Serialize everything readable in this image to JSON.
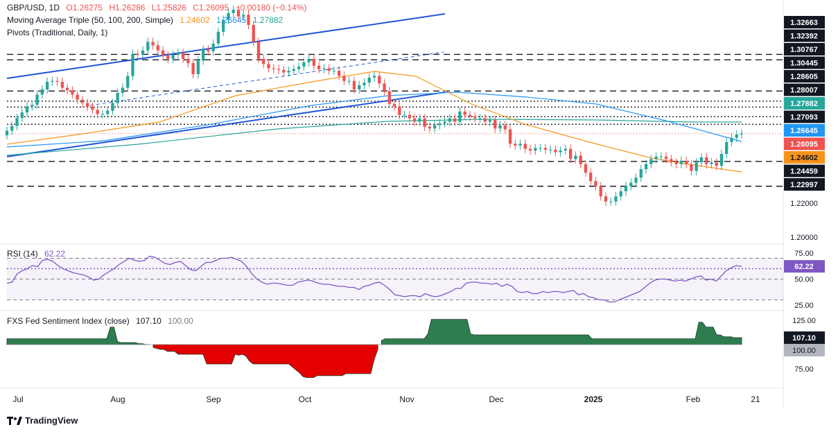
{
  "colors": {
    "up": "#26a69a",
    "down": "#ef5350",
    "ma50": "#f7931a",
    "ma100": "#2196f3",
    "ma200": "#26a69a",
    "trend": "#1e55d6",
    "rsi": "#7e57c2",
    "sentiment_pos": "#2e7d4f",
    "sentiment_neg": "#e40000",
    "pivot": "#131722"
  },
  "header": {
    "symbol": "GBP/USD, 1D",
    "open": "O1.26275",
    "high": "H1.26286",
    "low": "L1.25826",
    "close": "C1.26095",
    "change": "−0.00180 (−0.14%)",
    "ma_label": "Moving Average Triple (50, 100, 200, Simple)",
    "ma50": "1.24602",
    "ma100": "1.26645",
    "ma200": "1.27882",
    "pivots_label": "Pivots (Traditional, Daily, 1)"
  },
  "rsi_header": {
    "label": "RSI (14)",
    "value": "62.22"
  },
  "fed_header": {
    "label": "FXS Fed Sentiment Index (close)",
    "value": "107.10",
    "base": "100.00"
  },
  "watermark": "TradingView",
  "chart_data": [
    {
      "type": "candlestick",
      "title": "GBP/USD, 1D",
      "x_ticks": [
        "Jul",
        "Aug",
        "Sep",
        "Oct",
        "Nov",
        "Dec",
        "2025",
        "Feb",
        "21"
      ],
      "y_ticks": [
        1.2,
        1.22
      ],
      "ylim": [
        1.195,
        1.335
      ],
      "price_labels": [
        {
          "value": 1.32663,
          "text": "1.32663",
          "style": "dark"
        },
        {
          "value": 1.32392,
          "text": "1.32392",
          "style": "dark"
        },
        {
          "value": 1.30767,
          "text": "1.30767",
          "style": "dark"
        },
        {
          "value": 1.30445,
          "text": "1.30445",
          "style": "dark"
        },
        {
          "value": 1.28605,
          "text": "1.28605",
          "style": "dark"
        },
        {
          "value": 1.28007,
          "text": "1.28007",
          "style": "dark"
        },
        {
          "value": 1.27882,
          "text": "1.27882",
          "style": "ma200"
        },
        {
          "value": 1.27093,
          "text": "1.27093",
          "style": "dark"
        },
        {
          "value": 1.26645,
          "text": "1.26645",
          "style": "ma100"
        },
        {
          "value": 1.26095,
          "text": "1.26095",
          "style": "down"
        },
        {
          "value": 1.24602,
          "text": "1.24602",
          "style": "ma50"
        },
        {
          "value": 1.24459,
          "text": "1.24459",
          "style": "dark"
        },
        {
          "value": 1.22997,
          "text": "1.22997",
          "style": "dark"
        }
      ],
      "pivot_levels": [
        {
          "value": 1.30767,
          "dash": "long"
        },
        {
          "value": 1.30445,
          "dash": "long"
        },
        {
          "value": 1.28605,
          "dash": "long"
        },
        {
          "value": 1.28007,
          "dash": "dot"
        },
        {
          "value": 1.2766,
          "dash": "dot"
        },
        {
          "value": 1.27093,
          "dash": "dot"
        },
        {
          "value": 1.26645,
          "dash": "dot"
        },
        {
          "value": 1.24459,
          "dash": "long"
        },
        {
          "value": 1.22997,
          "dash": "long"
        }
      ],
      "close_series": [
        1.2627,
        1.2655,
        1.2702,
        1.2735,
        1.277,
        1.278,
        1.284,
        1.287,
        1.2915,
        1.292,
        1.2915,
        1.288,
        1.2865,
        1.284,
        1.281,
        1.279,
        1.2768,
        1.275,
        1.2725,
        1.2725,
        1.2745,
        1.279,
        1.285,
        1.288,
        1.295,
        1.308,
        1.3075,
        1.31,
        1.315,
        1.313,
        1.31,
        1.307,
        1.305,
        1.3075,
        1.3085,
        1.305,
        1.3025,
        1.296,
        1.304,
        1.3105,
        1.3095,
        1.314,
        1.321,
        1.328,
        1.332,
        1.334,
        1.33,
        1.331,
        1.325,
        1.315,
        1.305,
        1.302,
        1.2995,
        1.299,
        1.2985,
        1.297,
        1.298,
        1.299,
        1.3005,
        1.303,
        1.305,
        1.301,
        1.299,
        1.2995,
        1.298,
        1.298,
        1.295,
        1.292,
        1.292,
        1.287,
        1.2895,
        1.291,
        1.294,
        1.295,
        1.2905,
        1.286,
        1.2785,
        1.277,
        1.272,
        1.272,
        1.27,
        1.268,
        1.27,
        1.265,
        1.264,
        1.266,
        1.267,
        1.268,
        1.27,
        1.268,
        1.274,
        1.272,
        1.271,
        1.27,
        1.27,
        1.268,
        1.269,
        1.264,
        1.266,
        1.2635,
        1.255,
        1.254,
        1.255,
        1.252,
        1.251,
        1.2525,
        1.2525,
        1.2515,
        1.2515,
        1.25,
        1.251,
        1.252,
        1.246,
        1.248,
        1.243,
        1.238,
        1.233,
        1.23,
        1.224,
        1.221,
        1.221,
        1.224,
        1.227,
        1.23,
        1.232,
        1.235,
        1.24,
        1.243,
        1.246,
        1.2475,
        1.2475,
        1.246,
        1.244,
        1.243,
        1.245,
        1.243,
        1.239,
        1.244,
        1.247,
        1.243,
        1.244,
        1.242,
        1.249,
        1.256,
        1.2585,
        1.2605,
        1.261
      ],
      "sma": {
        "ma50": 1.24602,
        "ma100": 1.26645,
        "ma200": 1.27882
      }
    },
    {
      "type": "line",
      "title": "RSI (14)",
      "y_ticks": [
        75,
        50,
        25
      ],
      "ylim": [
        20,
        80
      ],
      "bands": [
        70,
        60,
        50,
        30
      ],
      "last_value": 62.22,
      "values": [
        46,
        47,
        55,
        58,
        60,
        63,
        62,
        68,
        69,
        67,
        63,
        60,
        58,
        56,
        55,
        54,
        52,
        49,
        50,
        54,
        57,
        60,
        64,
        67,
        70,
        68,
        67,
        68,
        72,
        71,
        68,
        65,
        64,
        66,
        67,
        63,
        59,
        58,
        62,
        66,
        66,
        68,
        70,
        70,
        71,
        69,
        67,
        62,
        55,
        50,
        47,
        45,
        46,
        46,
        45,
        44,
        44,
        47,
        48,
        49,
        48,
        46,
        45,
        45,
        44,
        43,
        43,
        42,
        42,
        40,
        43,
        44,
        46,
        47,
        44,
        40,
        35,
        34,
        33,
        34,
        34,
        33,
        36,
        34,
        33,
        34,
        36,
        38,
        41,
        41,
        46,
        47,
        47,
        46,
        46,
        45,
        46,
        43,
        45,
        43,
        38,
        37,
        38,
        36,
        36,
        38,
        37,
        38,
        38,
        37,
        38,
        39,
        35,
        36,
        33,
        32,
        30,
        30,
        28,
        28,
        30,
        32,
        34,
        36,
        38,
        42,
        46,
        49,
        50,
        50,
        49,
        48,
        49,
        48,
        50,
        52,
        53,
        49,
        50,
        48,
        53,
        58,
        61,
        63,
        62
      ]
    },
    {
      "type": "area",
      "title": "FXS Fed Sentiment Index (close)",
      "y_ticks": [
        125,
        100,
        75
      ],
      "ylim": [
        60,
        135
      ],
      "baseline": 100,
      "last_value": 107.1,
      "values": [
        106,
        106,
        106,
        106,
        106,
        106,
        106,
        106,
        106,
        106,
        106,
        106,
        106,
        106,
        106,
        106,
        106,
        106,
        106,
        106,
        106,
        106,
        106,
        106,
        106,
        106,
        106,
        106,
        106,
        118,
        118,
        103,
        102,
        102,
        102,
        102,
        102,
        101,
        101,
        100,
        100,
        97,
        96,
        95,
        95,
        93,
        93,
        93,
        90,
        90,
        90,
        90,
        90,
        90,
        90,
        90,
        80,
        80,
        80,
        80,
        80,
        80,
        80,
        80,
        90,
        89,
        90,
        88,
        83,
        80,
        80,
        80,
        80,
        80,
        80,
        80,
        80,
        80,
        80,
        80,
        77,
        74,
        71,
        67,
        66,
        66,
        66,
        68,
        68,
        68,
        68,
        68,
        68,
        68,
        68,
        70,
        70,
        70,
        70,
        70,
        70,
        70,
        70,
        85,
        95,
        104,
        106,
        106,
        106,
        106,
        106,
        106,
        106,
        106,
        106,
        106,
        106,
        106,
        111,
        126,
        126,
        126,
        126,
        126,
        126,
        126,
        126,
        126,
        126,
        126,
        111,
        110,
        110,
        110,
        110,
        110,
        110,
        110,
        110,
        110,
        110,
        110,
        110,
        110,
        110,
        110,
        110,
        110,
        110,
        110,
        110,
        110,
        110,
        110,
        110,
        110,
        110,
        110,
        110,
        110,
        110,
        110,
        110,
        110,
        106,
        106,
        106,
        106,
        106,
        106,
        106,
        106,
        106,
        106,
        106,
        106,
        106,
        106,
        106,
        106,
        106,
        106,
        106,
        106,
        106,
        106,
        106,
        106,
        106,
        106,
        106,
        106,
        106,
        106,
        123,
        123,
        118,
        118,
        118,
        110,
        110,
        108,
        108,
        108,
        107,
        107,
        107.1
      ]
    }
  ]
}
